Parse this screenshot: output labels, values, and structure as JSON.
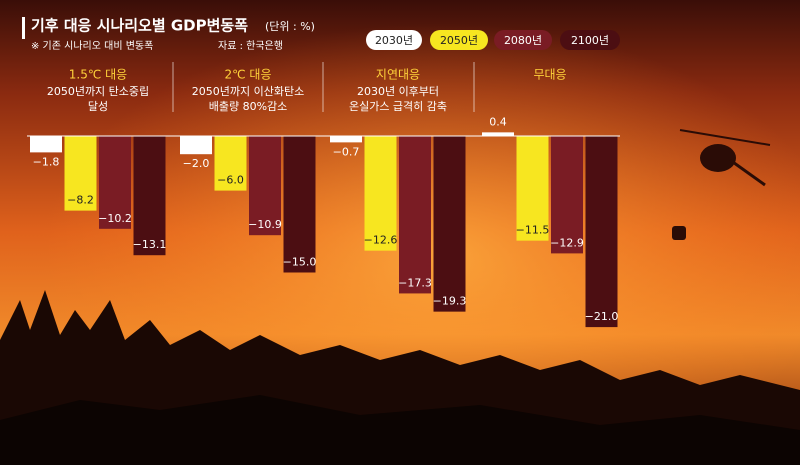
{
  "chart_data": {
    "type": "bar",
    "title": "기후 대응 시나리오별 GDP변동폭",
    "unit": "(단위 : %)",
    "subtitle": "※ 기존 시나리오 대비 변동폭",
    "source": "자료 : 한국은행",
    "categories": [
      "1.5℃ 대응",
      "2℃ 대응",
      "지연대응",
      "무대응"
    ],
    "category_descriptions": [
      [
        "2050년까지 탄소중립",
        "달성"
      ],
      [
        "2050년까지 이산화탄소",
        "배출량 80%감소"
      ],
      [
        "2030년 이후부터",
        "온실가스 급격히 감축"
      ],
      []
    ],
    "series": [
      {
        "name": "2030년",
        "color": "#ffffff",
        "values": [
          -1.8,
          -2.0,
          -0.7,
          0.4
        ],
        "value_labels": [
          "−1.8",
          "−2.0",
          "−0.7",
          "0.4"
        ]
      },
      {
        "name": "2050년",
        "color": "#f7e620",
        "values": [
          -8.2,
          -6.0,
          -12.6,
          -11.5
        ],
        "value_labels": [
          "−8.2",
          "−6.0",
          "−12.6",
          "−11.5"
        ]
      },
      {
        "name": "2080년",
        "color": "#7a1c24",
        "values": [
          -10.2,
          -10.9,
          -17.3,
          -12.9
        ],
        "value_labels": [
          "−10.2",
          "−10.9",
          "−17.3",
          "−12.9"
        ]
      },
      {
        "name": "2100년",
        "color": "#4c0e12",
        "values": [
          -13.1,
          -15.0,
          -19.3,
          -21.0
        ],
        "value_labels": [
          "−13.1",
          "−15.0",
          "−19.3",
          "−21.0"
        ]
      }
    ]
  }
}
